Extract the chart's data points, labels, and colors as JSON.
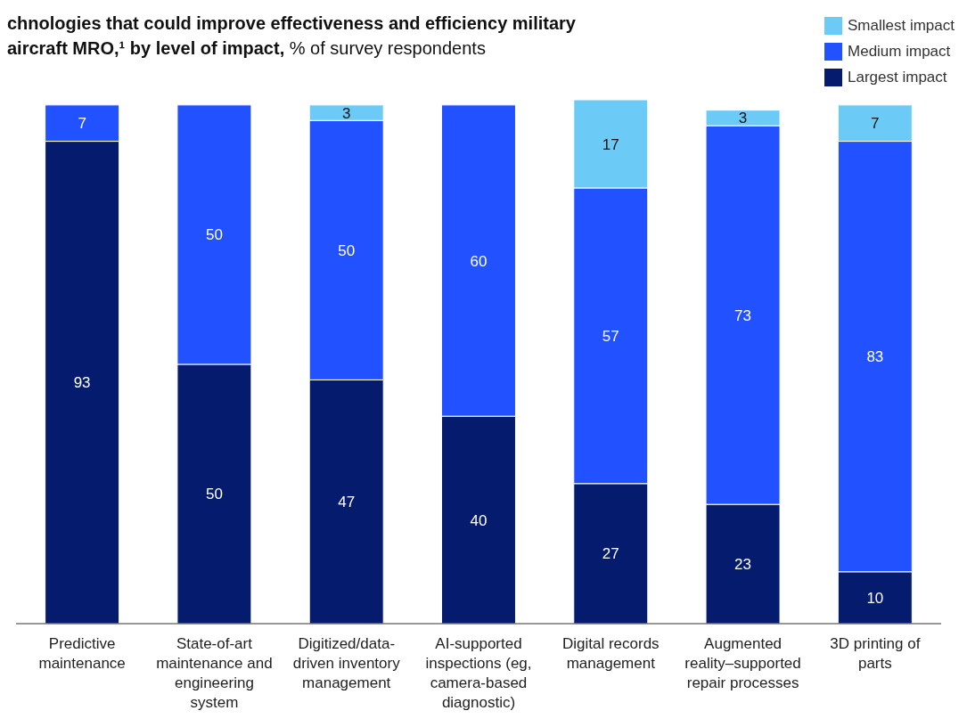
{
  "chart_data": {
    "type": "bar",
    "title": "chnologies that could improve effectiveness and efficiency military aircraft MRO,¹ by level of impact,",
    "subtitle": "% of survey respondents",
    "categories": [
      "Predictive maintenance",
      "State-of-art maintenance and engineering system",
      "Digitized/data-driven inventory management",
      "AI-supported inspections (eg, camera-based diagnostic)",
      "Digital records management",
      "Augmented reality–supported repair processes",
      "3D printing of parts"
    ],
    "series": [
      {
        "name": "Largest impact",
        "color": "#051c6e",
        "values": [
          93,
          50,
          47,
          40,
          27,
          23,
          10
        ]
      },
      {
        "name": "Medium impact",
        "color": "#2251ff",
        "values": [
          7,
          50,
          50,
          60,
          57,
          73,
          83
        ]
      },
      {
        "name": "Smallest impact",
        "color": "#6ccaf7",
        "values": [
          null,
          null,
          3,
          null,
          17,
          3,
          7
        ]
      }
    ],
    "stacked": true,
    "data_labels": true,
    "legend": "top right",
    "grid": false
  }
}
